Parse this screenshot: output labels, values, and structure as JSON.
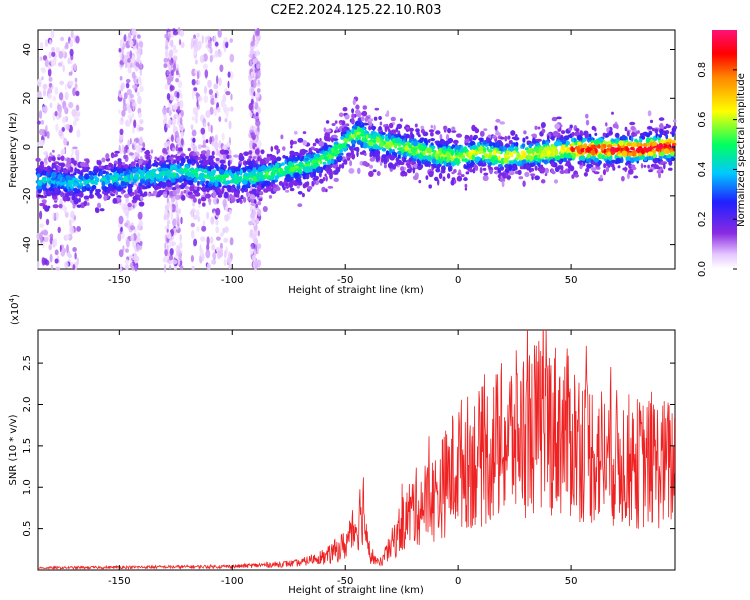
{
  "title": "C2E2.2024.125.22.10.R03",
  "chart_data": [
    {
      "type": "heatmap",
      "xlabel": "Height of straight line (km)",
      "ylabel": "Frequency (Hz)",
      "xlim": [
        -186,
        96
      ],
      "ylim": [
        -50,
        48
      ],
      "xticks": [
        -150,
        -100,
        -50,
        0,
        50
      ],
      "yticks": [
        -40,
        -20,
        0,
        20,
        40
      ],
      "ridge": {
        "x": [
          -186,
          -178,
          -170,
          -160,
          -150,
          -140,
          -130,
          -120,
          -110,
          -100,
          -90,
          -80,
          -70,
          -62,
          -56,
          -52,
          -48,
          -44,
          -40,
          -35,
          -30,
          -20,
          -10,
          0,
          10,
          20,
          30,
          40,
          50,
          60,
          70,
          80,
          90,
          96
        ],
        "y": [
          -14,
          -14,
          -15,
          -14,
          -13,
          -12,
          -11,
          -10,
          -12,
          -13,
          -12,
          -10,
          -8,
          -6,
          -3,
          0,
          4,
          6,
          3,
          2,
          1,
          -1,
          -3,
          -4,
          -2,
          -4,
          -3,
          -2,
          -1,
          -1,
          -1,
          -1,
          0,
          0
        ]
      },
      "colorbar": {
        "label": "Normalized spectral amplitude",
        "ticks": [
          0.0,
          0.2,
          0.4,
          0.6,
          0.8
        ],
        "range": [
          0,
          0.96
        ]
      }
    },
    {
      "type": "line",
      "xlabel": "Height of straight line (km)",
      "ylabel": "SNR (10 * v/v)",
      "multiplier": "(x10",
      "multiplier_exp": "4",
      "xlim": [
        -186,
        96
      ],
      "ylim": [
        0,
        2.9
      ],
      "xticks": [
        -150,
        -100,
        -50,
        0,
        50
      ],
      "yticks": [
        0.5,
        1.0,
        1.5,
        2.0,
        2.5
      ],
      "series": [
        {
          "color": "#ee2222",
          "envelope": {
            "x": [
              -186,
              -100,
              -80,
              -70,
              -60,
              -50,
              -45,
              -42,
              -40,
              -35,
              -30,
              -25,
              -20,
              -10,
              0,
              10,
              20,
              30,
              40,
              50,
              60,
              70,
              80,
              90,
              96
            ],
            "y": [
              0.03,
              0.05,
              0.08,
              0.1,
              0.2,
              0.45,
              0.8,
              1.2,
              0.35,
              0.1,
              0.4,
              0.8,
              1.1,
              1.3,
              1.9,
              2.0,
              2.3,
              2.5,
              2.6,
              2.4,
              2.1,
              2.0,
              1.9,
              1.9,
              1.9
            ]
          }
        }
      ]
    }
  ]
}
